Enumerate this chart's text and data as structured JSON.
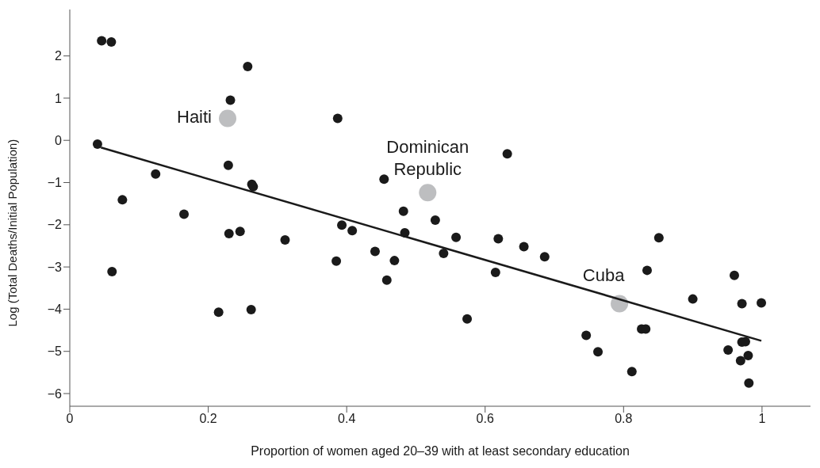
{
  "chart_data": {
    "type": "scatter",
    "xlabel": "Proportion of women aged 20–39 with at least secondary education",
    "ylabel": "Log (Total Deaths/Initial Population)",
    "xlim": [
      0,
      1.07
    ],
    "xticks": [
      0,
      0.2,
      0.4,
      0.6,
      0.8,
      1
    ],
    "ylim": [
      -6.3,
      3.1
    ],
    "yticks": [
      -6,
      -5,
      -4,
      -3,
      -2,
      -1,
      0,
      1,
      2
    ],
    "grid": false,
    "legend": false,
    "marker": "circle",
    "series": [
      {
        "color": "#1a1a1a",
        "x": [
          0.046,
          0.06,
          0.257,
          0.232,
          0.04,
          0.124,
          0.229,
          0.263,
          0.265,
          0.076,
          0.165,
          0.23,
          0.246,
          0.311,
          0.061,
          0.215,
          0.262,
          0.387,
          0.632,
          0.454,
          0.482,
          0.528,
          0.393,
          0.408,
          0.484,
          0.558,
          0.619,
          0.656,
          0.686,
          0.54,
          0.441,
          0.385,
          0.469,
          0.458,
          0.615,
          0.574,
          0.851,
          0.834,
          0.96,
          0.9,
          0.971,
          0.999,
          0.826,
          0.832,
          0.746,
          0.763,
          0.812,
          0.971,
          0.976,
          0.951,
          0.98,
          0.969,
          0.981
        ],
        "values": [
          2.36,
          2.33,
          1.75,
          0.95,
          -0.09,
          -0.8,
          -0.59,
          -1.04,
          -1.1,
          -1.41,
          -1.75,
          -2.21,
          -2.16,
          -2.36,
          -3.11,
          -4.07,
          -4.01,
          0.52,
          -0.32,
          -0.92,
          -1.68,
          -1.89,
          -2.01,
          -2.14,
          -2.19,
          -2.3,
          -2.33,
          -2.52,
          -2.76,
          -2.68,
          -2.63,
          -2.86,
          -2.85,
          -3.31,
          -3.13,
          -4.23,
          -2.31,
          -3.08,
          -3.2,
          -3.76,
          -3.87,
          -3.85,
          -4.47,
          -4.47,
          -4.62,
          -5.01,
          -5.48,
          -4.78,
          -4.77,
          -4.97,
          -5.1,
          -5.22,
          -5.75
        ]
      },
      {
        "color": "#bdbec0",
        "x": [
          0.228,
          0.517,
          0.794
        ],
        "values": [
          0.52,
          -1.24,
          -3.87
        ]
      },
      {
        "type": "line",
        "color": "#1a1a1a",
        "marker": "none",
        "line_style": "solid",
        "x": [
          0.045,
          0.999
        ],
        "values": [
          -0.17,
          -4.75
        ]
      }
    ],
    "annotations": [
      {
        "text": "Haiti",
        "x": 0.228,
        "y": 0.52
      },
      {
        "text": "Dominican Republic",
        "x": 0.517,
        "y": -1.24
      },
      {
        "text": "Cuba",
        "x": 0.794,
        "y": -3.87
      }
    ]
  }
}
